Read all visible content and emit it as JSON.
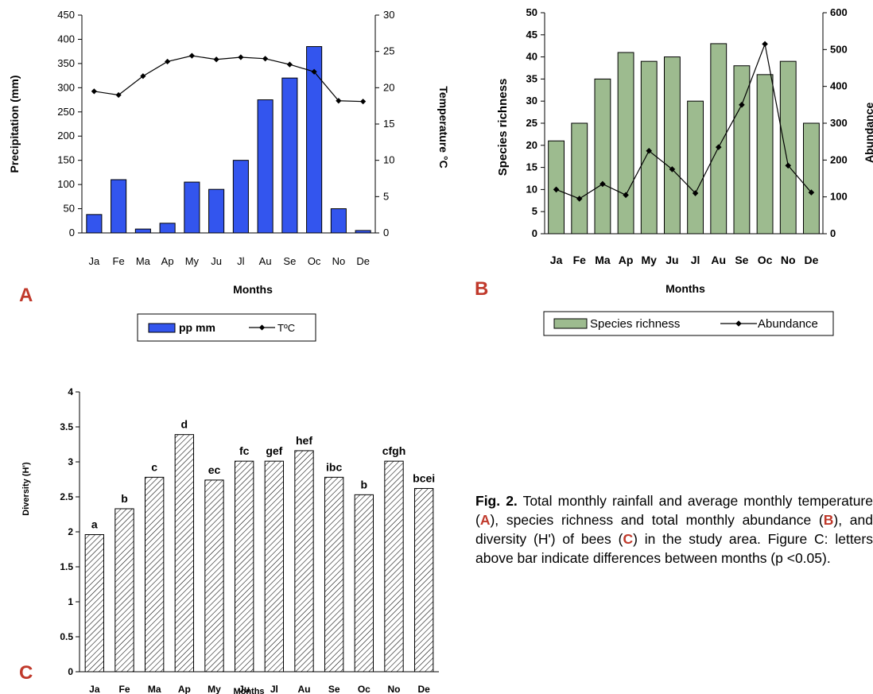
{
  "months_A": [
    "Ja",
    "Fe",
    "Ma",
    "Ap",
    "My",
    "Ju",
    "Jl",
    "Au",
    "Se",
    "Oc",
    "No",
    "De"
  ],
  "months_B": [
    "Ja",
    "Fe",
    "Ma",
    "Ap",
    "My",
    "Ju",
    "Jl",
    "Au",
    "Se",
    "Oc",
    "No",
    "De"
  ],
  "months_C": [
    "Ja",
    "Fe",
    "Ma",
    "Ap",
    "My",
    "Ju",
    "Jl",
    "Au",
    "Se",
    "Oc",
    "No",
    "De"
  ],
  "panels": {
    "a": "A",
    "b": "B",
    "c": "C"
  },
  "colors": {
    "precip_bar": "#3355ee",
    "richness_bar": "#9dbb8f",
    "line": "#000000",
    "caption_highlight": "#c0392b"
  },
  "chart_data": [
    {
      "type": "bar",
      "panel": "A",
      "categories": [
        "Ja",
        "Fe",
        "Ma",
        "Ap",
        "My",
        "Ju",
        "Jl",
        "Au",
        "Se",
        "Oc",
        "No",
        "De"
      ],
      "xlabel": "Months",
      "ylabel": "Precipitation (mm)",
      "y2label": "Temperature °C",
      "ylim": [
        0,
        450
      ],
      "yticks": [
        0,
        50,
        100,
        150,
        200,
        250,
        300,
        350,
        400,
        450
      ],
      "y2lim": [
        0,
        30
      ],
      "y2ticks": [
        0,
        5,
        10,
        15,
        20,
        25,
        30
      ],
      "legend": [
        "pp mm",
        "TºC"
      ],
      "series": [
        {
          "values": [
            38,
            110,
            8,
            20,
            105,
            90,
            150,
            275,
            320,
            385,
            50,
            5
          ]
        },
        {
          "values": [
            19.5,
            19.0,
            21.6,
            23.6,
            24.4,
            23.9,
            24.2,
            24.0,
            23.2,
            22.2,
            18.2,
            18.1
          ]
        }
      ]
    },
    {
      "type": "bar",
      "panel": "B",
      "categories": [
        "Ja",
        "Fe",
        "Ma",
        "Ap",
        "My",
        "Ju",
        "Jl",
        "Au",
        "Se",
        "Oc",
        "No",
        "De"
      ],
      "xlabel": "Months",
      "ylabel": "Species richness",
      "y2label": "Abundance",
      "ylim": [
        0,
        50
      ],
      "yticks": [
        0,
        5,
        10,
        15,
        20,
        25,
        30,
        35,
        40,
        45,
        50
      ],
      "y2lim": [
        0,
        600
      ],
      "y2ticks": [
        0,
        100,
        200,
        300,
        400,
        500,
        600
      ],
      "legend": [
        "Species richness",
        "Abundance"
      ],
      "series": [
        {
          "values": [
            21,
            25,
            35,
            41,
            39,
            40,
            30,
            43,
            38,
            36,
            39,
            25
          ]
        },
        {
          "values": [
            120,
            95,
            135,
            105,
            225,
            175,
            110,
            235,
            350,
            515,
            185,
            112
          ]
        }
      ]
    },
    {
      "type": "bar",
      "panel": "C",
      "categories": [
        "Ja",
        "Fe",
        "Ma",
        "Ap",
        "My",
        "Ju",
        "Jl",
        "Au",
        "Se",
        "Oc",
        "No",
        "De"
      ],
      "xlabel": "Months",
      "ylabel": "Diversity (H')",
      "ylim": [
        0,
        4
      ],
      "yticks": [
        "0",
        "0.5",
        "1",
        "1.5",
        "2",
        "2.5",
        "3",
        "3.5",
        "4"
      ],
      "values": [
        1.96,
        2.33,
        2.78,
        3.39,
        2.74,
        3.01,
        3.01,
        3.16,
        2.78,
        2.53,
        3.01,
        2.62
      ],
      "bar_letters": [
        "a",
        "b",
        "c",
        "d",
        "ec",
        "fc",
        "gef",
        "hef",
        "ibc",
        "b",
        "cfgh",
        "bcei"
      ]
    }
  ],
  "caption": {
    "fig": "Fig. 2.",
    "t1": " Total monthly rainfall and average monthly temperature (",
    "h1": "A",
    "t2": "), species richness and total monthly abundance (",
    "h2": "B",
    "t3": "), and diversity (H') of bees (",
    "h3": "C",
    "t4": ") in the study area. Figure C: letters above bar indicate differences between months (p <0.05)."
  }
}
